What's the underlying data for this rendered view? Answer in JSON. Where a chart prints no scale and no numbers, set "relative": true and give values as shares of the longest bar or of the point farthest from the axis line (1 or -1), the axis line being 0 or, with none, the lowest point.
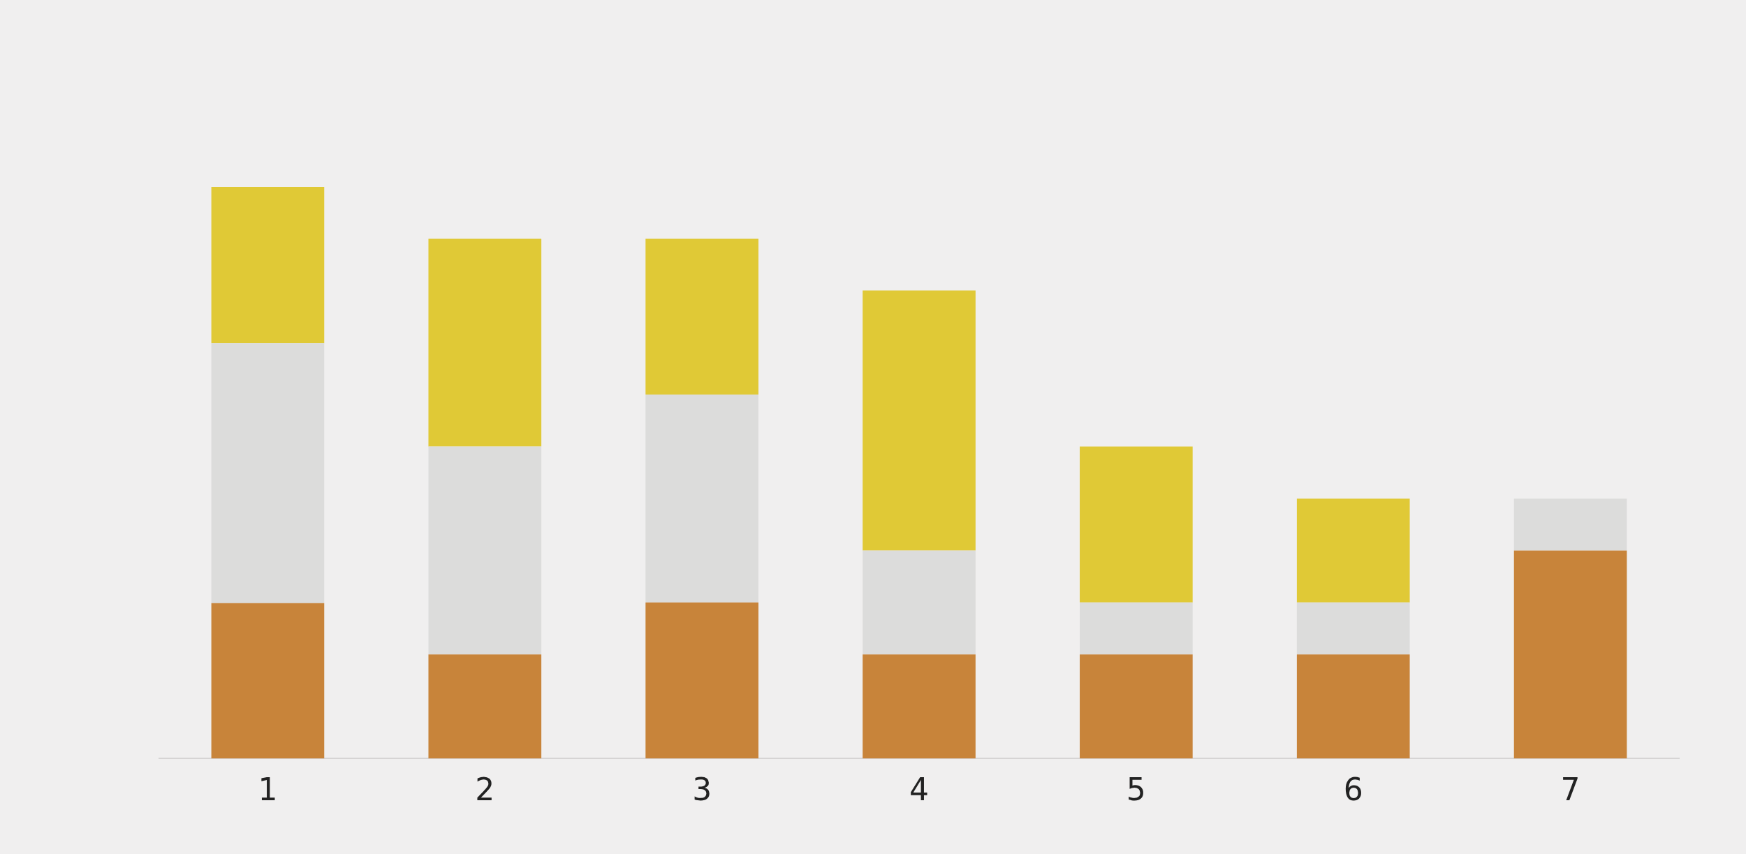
{
  "chart_data": {
    "type": "bar",
    "stacked": true,
    "relative": true,
    "legend": false,
    "categories": [
      "1",
      "2",
      "3",
      "4",
      "5",
      "6",
      "7"
    ],
    "series": [
      {
        "color": "#c8843a",
        "values": [
          0.272,
          0.182,
          0.273,
          0.182,
          0.182,
          0.182,
          0.364
        ]
      },
      {
        "color": "#dcdcdb",
        "values": [
          0.455,
          0.364,
          0.364,
          0.182,
          0.091,
          0.091,
          0.091
        ]
      },
      {
        "color": "#e0c936",
        "values": [
          0.273,
          0.364,
          0.273,
          0.455,
          0.273,
          0.182,
          null
        ]
      }
    ]
  }
}
